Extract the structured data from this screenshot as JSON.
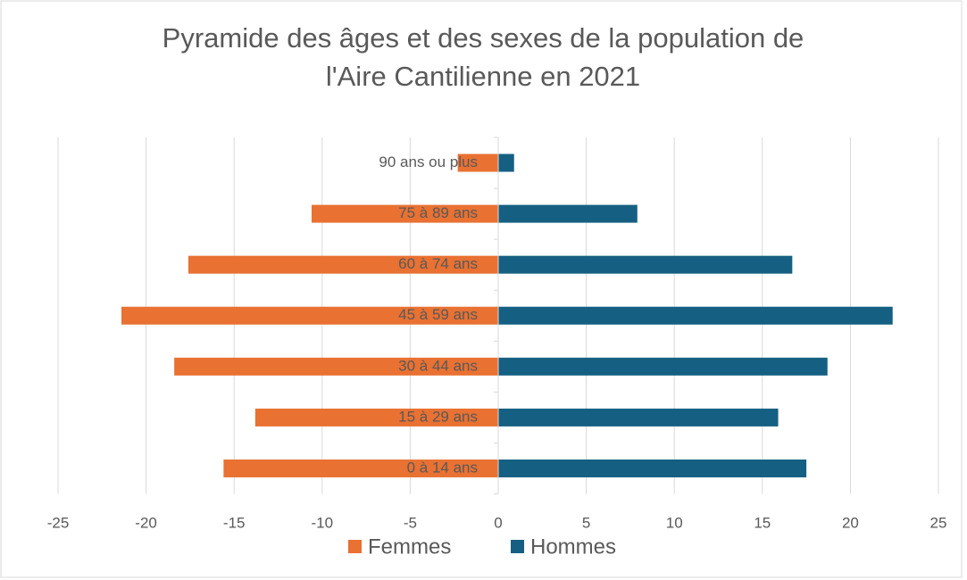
{
  "chart_data": {
    "type": "bar",
    "orientation": "horizontal",
    "title": [
      "Pyramide des âges et des sexes de la population de",
      "l'Aire Cantilienne en 2021"
    ],
    "categories": [
      "0 à 14 ans",
      "15 à 29 ans",
      "30 à 44 ans",
      "45 à 59 ans",
      "60 à 74 ans",
      "75 à 89 ans",
      "90 ans ou plus"
    ],
    "series": [
      {
        "name": "Femmes",
        "color": "#E97132",
        "values": [
          -15.6,
          -13.8,
          -18.4,
          -21.4,
          -17.6,
          -10.6,
          -2.3
        ]
      },
      {
        "name": "Hommes",
        "color": "#156082",
        "values": [
          17.5,
          15.9,
          18.7,
          22.4,
          16.7,
          7.9,
          0.9
        ]
      }
    ],
    "xlim": [
      -25,
      25
    ],
    "xticks": [
      -25,
      -20,
      -15,
      -10,
      -5,
      0,
      5,
      10,
      15,
      20,
      25
    ],
    "grid": true,
    "legend": "bottom"
  }
}
